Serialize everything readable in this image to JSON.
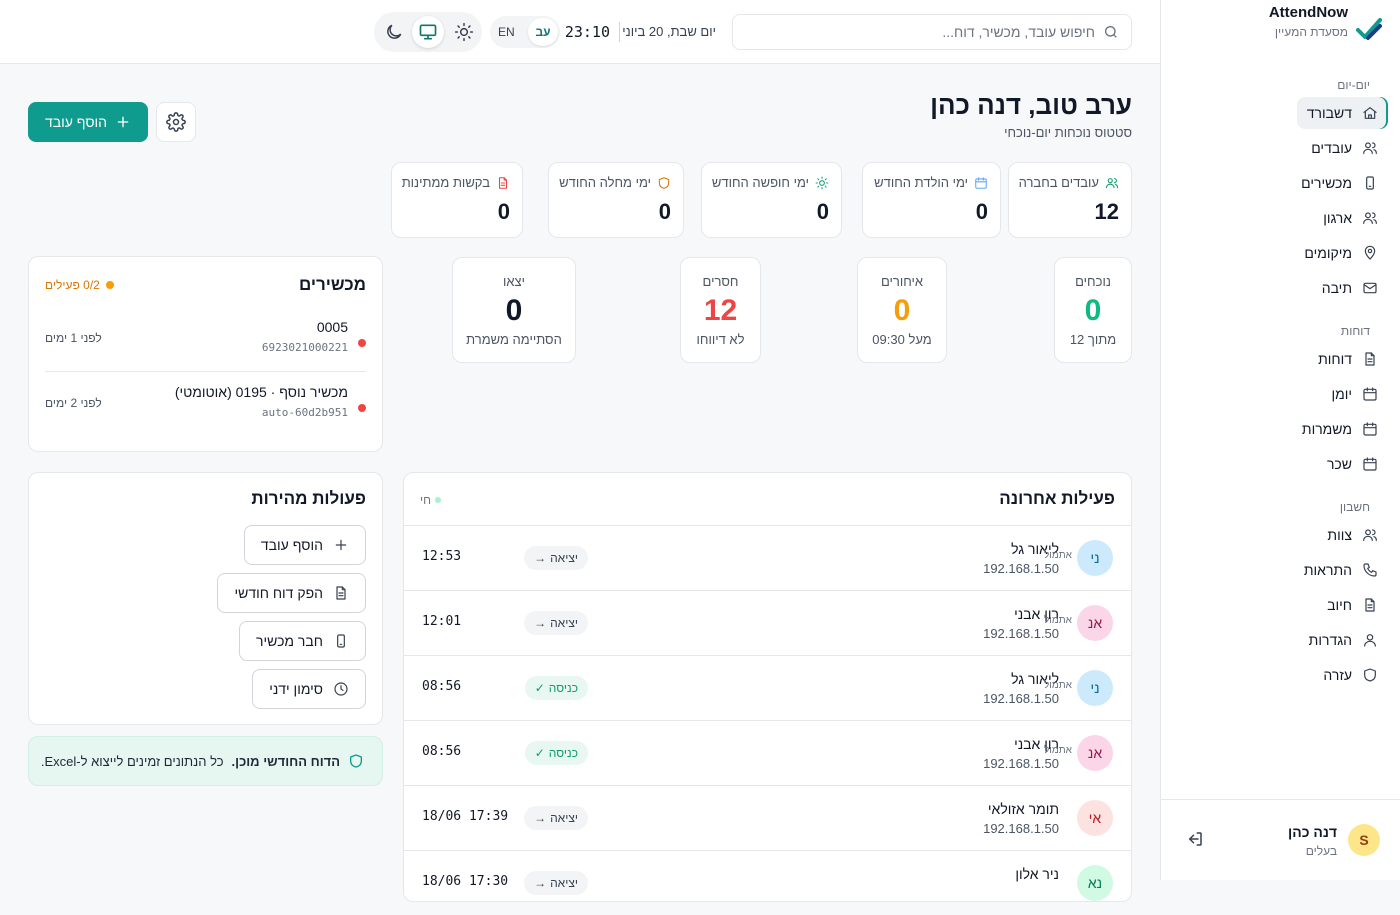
{
  "brand": {
    "name": "AttendNow",
    "subtitle": "מסעדת המעיין"
  },
  "sidebar": {
    "sections": [
      {
        "title": "יום-יום",
        "items": [
          {
            "label": "דשבורד",
            "icon": "home-icon",
            "active": true
          },
          {
            "label": "עובדים",
            "icon": "users-icon"
          },
          {
            "label": "מכשירים",
            "icon": "device-icon"
          },
          {
            "label": "ארגון",
            "icon": "users-icon"
          },
          {
            "label": "מיקומים",
            "icon": "map-pin-icon"
          },
          {
            "label": "תיבה",
            "icon": "mail-icon"
          }
        ]
      },
      {
        "title": "דוחות",
        "items": [
          {
            "label": "דוחות",
            "icon": "file-icon"
          },
          {
            "label": "יומן",
            "icon": "calendar-icon"
          },
          {
            "label": "משמרות",
            "icon": "calendar-icon"
          },
          {
            "label": "שכר",
            "icon": "calendar-icon"
          }
        ]
      },
      {
        "title": "חשבון",
        "items": [
          {
            "label": "צוות",
            "icon": "users-icon"
          },
          {
            "label": "התראות",
            "icon": "phone-icon"
          },
          {
            "label": "חיוב",
            "icon": "file-icon"
          },
          {
            "label": "הגדרות",
            "icon": "user-icon"
          },
          {
            "label": "עזרה",
            "icon": "shield-icon"
          }
        ]
      }
    ],
    "user": {
      "initial": "S",
      "name": "דנה כהן",
      "role": "בעלים"
    }
  },
  "topbar": {
    "search_placeholder": "חיפוש עובד, מכשיר, דוח...",
    "date": "יום שבת, 20 ביוני",
    "time": "23:10",
    "lang_active": "עב",
    "lang_other": "EN"
  },
  "header": {
    "greeting": "ערב טוב, דנה כהן",
    "subtitle": "סטטוס נוכחות יום-נוכחי",
    "add_employee": "הוסף עובד"
  },
  "stats": [
    {
      "label": "עובדים בחברה",
      "value": "12",
      "icon": "users-icon",
      "color": "#0f9b6e"
    },
    {
      "label": "ימי הולדת החודש",
      "value": "0",
      "icon": "calendar-icon",
      "color": "#60a5fa"
    },
    {
      "label": "ימי חופשה החודש",
      "value": "0",
      "icon": "sun-icon",
      "color": "#0f9b6e"
    },
    {
      "label": "ימי מחלה החודש",
      "value": "0",
      "icon": "shield-icon",
      "color": "#d97706"
    },
    {
      "label": "בקשות ממתינות",
      "value": "0",
      "icon": "file-icon",
      "color": "#ef4444"
    }
  ],
  "attendance": [
    {
      "label": "נוכחים",
      "value": "0",
      "sub": "מתוך 12",
      "color": "#10b981"
    },
    {
      "label": "איחורים",
      "value": "0",
      "sub": "מעל 09:30",
      "color": "#f59e0b"
    },
    {
      "label": "חסרים",
      "value": "12",
      "sub": "לא דיווחו",
      "color": "#ef4444"
    },
    {
      "label": "יצאו",
      "value": "0",
      "sub": "הסתיימה משמרת",
      "color": "#111827"
    }
  ],
  "devices": {
    "title": "מכשירים",
    "active": "0/2 פעילים",
    "items": [
      {
        "name": "0005",
        "id": "6923021000221",
        "time": "לפני 1 ימים"
      },
      {
        "name": "מכשיר נוסף · 0195 (אוטומטי)",
        "id": "auto-60d2b951",
        "time": "לפני 2 ימים"
      }
    ]
  },
  "activity": {
    "title": "פעילות אחרונה",
    "live": "חי",
    "rows": [
      {
        "initials": "ני",
        "name": "ליאור גל",
        "ip": "192.168.1.50",
        "type": "out",
        "badge": "יציאה",
        "day": "אתמול",
        "time": "12:53",
        "bg": "#cdeafd",
        "fg": "#0369a1"
      },
      {
        "initials": "אנ",
        "name": "רון אבני",
        "ip": "192.168.1.50",
        "type": "out",
        "badge": "יציאה",
        "day": "אתמול",
        "time": "12:01",
        "bg": "#fbd5e8",
        "fg": "#9d174d"
      },
      {
        "initials": "ני",
        "name": "ליאור גל",
        "ip": "192.168.1.50",
        "type": "in",
        "badge": "כניסה",
        "day": "אתמול",
        "time": "08:56",
        "bg": "#cdeafd",
        "fg": "#0369a1"
      },
      {
        "initials": "אנ",
        "name": "רון אבני",
        "ip": "192.168.1.50",
        "type": "in",
        "badge": "כניסה",
        "day": "אתמול",
        "time": "08:56",
        "bg": "#fbd5e8",
        "fg": "#9d174d"
      },
      {
        "initials": "אי",
        "name": "תומר אזולאי",
        "ip": "192.168.1.50",
        "type": "out",
        "badge": "יציאה",
        "day": "",
        "time": "17:39 18/06",
        "bg": "#fde2e2",
        "fg": "#b91c1c"
      },
      {
        "initials": "נא",
        "name": "ניר אלון",
        "ip": "",
        "type": "out",
        "badge": "יציאה",
        "day": "",
        "time": "17:30 18/06",
        "bg": "#d1fae5",
        "fg": "#047857"
      }
    ]
  },
  "quick_actions": {
    "title": "פעולות מהירות",
    "items": [
      {
        "label": "הוסף עובד",
        "icon": "plus-icon"
      },
      {
        "label": "הפק דוח חודשי",
        "icon": "file-icon"
      },
      {
        "label": "חבר מכשיר",
        "icon": "device-icon"
      },
      {
        "label": "סימון ידני",
        "icon": "clock-icon"
      }
    ]
  },
  "report_banner": {
    "bold": "הדוח החודשי מוכן.",
    "text": "כל הנתונים זמינים לייצוא ל-Excel."
  }
}
